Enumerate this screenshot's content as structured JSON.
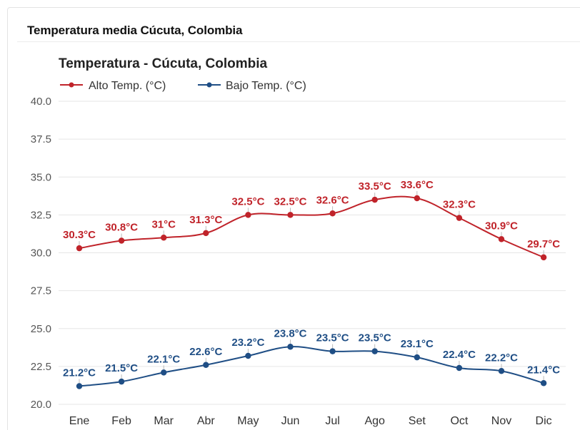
{
  "header": {
    "title": "Temperatura media Cúcuta, Colombia"
  },
  "chart_data": {
    "type": "line",
    "title": "Temperatura - Cúcuta, Colombia",
    "xlabel": "",
    "ylabel": "",
    "categories": [
      "Ene",
      "Feb",
      "Mar",
      "Abr",
      "May",
      "Jun",
      "Jul",
      "Ago",
      "Set",
      "Oct",
      "Nov",
      "Dic"
    ],
    "ylim": [
      20.0,
      40.0
    ],
    "yticks": [
      "40.0",
      "37.5",
      "35.0",
      "32.5",
      "30.0",
      "27.5",
      "25.0",
      "22.5",
      "20.0"
    ],
    "grid": true,
    "legend_position": "top-left",
    "series": [
      {
        "name": "Alto Temp. (°C)",
        "color": "#c0232a",
        "values": [
          30.3,
          30.8,
          31.0,
          31.3,
          32.5,
          32.5,
          32.6,
          33.5,
          33.6,
          32.3,
          30.9,
          29.7
        ],
        "labels": [
          "30.3°C",
          "30.8°C",
          "31°C",
          "31.3°C",
          "32.5°C",
          "32.5°C",
          "32.6°C",
          "33.5°C",
          "33.6°C",
          "32.3°C",
          "30.9°C",
          "29.7°C"
        ]
      },
      {
        "name": "Bajo Temp. (°C)",
        "color": "#1f4e85",
        "values": [
          21.2,
          21.5,
          22.1,
          22.6,
          23.2,
          23.8,
          23.5,
          23.5,
          23.1,
          22.4,
          22.2,
          21.4
        ],
        "labels": [
          "21.2°C",
          "21.5°C",
          "22.1°C",
          "22.6°C",
          "23.2°C",
          "23.8°C",
          "23.5°C",
          "23.5°C",
          "23.1°C",
          "22.4°C",
          "22.2°C",
          "21.4°C"
        ]
      }
    ]
  }
}
